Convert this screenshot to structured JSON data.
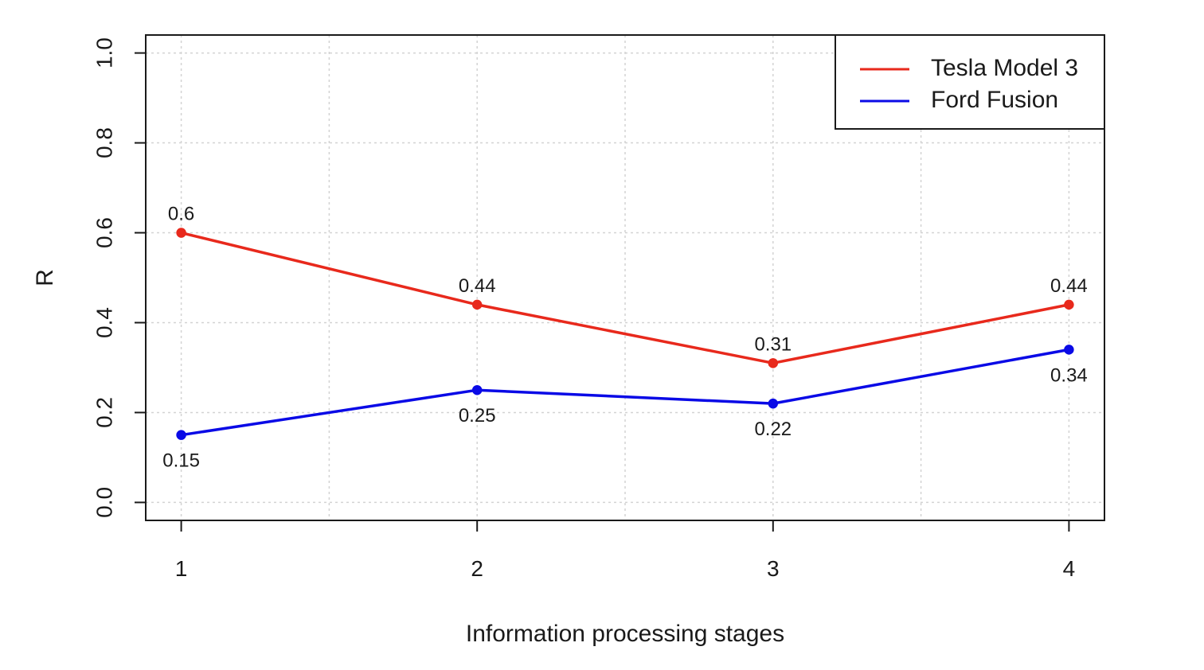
{
  "chart_data": {
    "type": "line",
    "title": "",
    "xlabel": "Information processing stages",
    "ylabel": "R",
    "x": [
      1,
      2,
      3,
      4
    ],
    "xticks": [
      "1",
      "2",
      "3",
      "4"
    ],
    "xlim": [
      0.88,
      4.12
    ],
    "ylim": [
      -0.04,
      1.04
    ],
    "yticks": [
      "0.0",
      "0.2",
      "0.4",
      "0.6",
      "0.8",
      "1.0"
    ],
    "grid": true,
    "legend_position": "top-right",
    "series": [
      {
        "name": "Tesla Model 3",
        "color": "#e8291c",
        "values": [
          0.6,
          0.44,
          0.31,
          0.44
        ],
        "labels": [
          "0.6",
          "0.44",
          "0.31",
          "0.44"
        ],
        "label_position": [
          "above",
          "above",
          "above",
          "above"
        ]
      },
      {
        "name": "Ford Fusion",
        "color": "#0a0ae6",
        "values": [
          0.15,
          0.25,
          0.22,
          0.34
        ],
        "labels": [
          "0.15",
          "0.25",
          "0.22",
          "0.34"
        ],
        "label_position": [
          "below",
          "below",
          "below",
          "below"
        ]
      }
    ]
  }
}
